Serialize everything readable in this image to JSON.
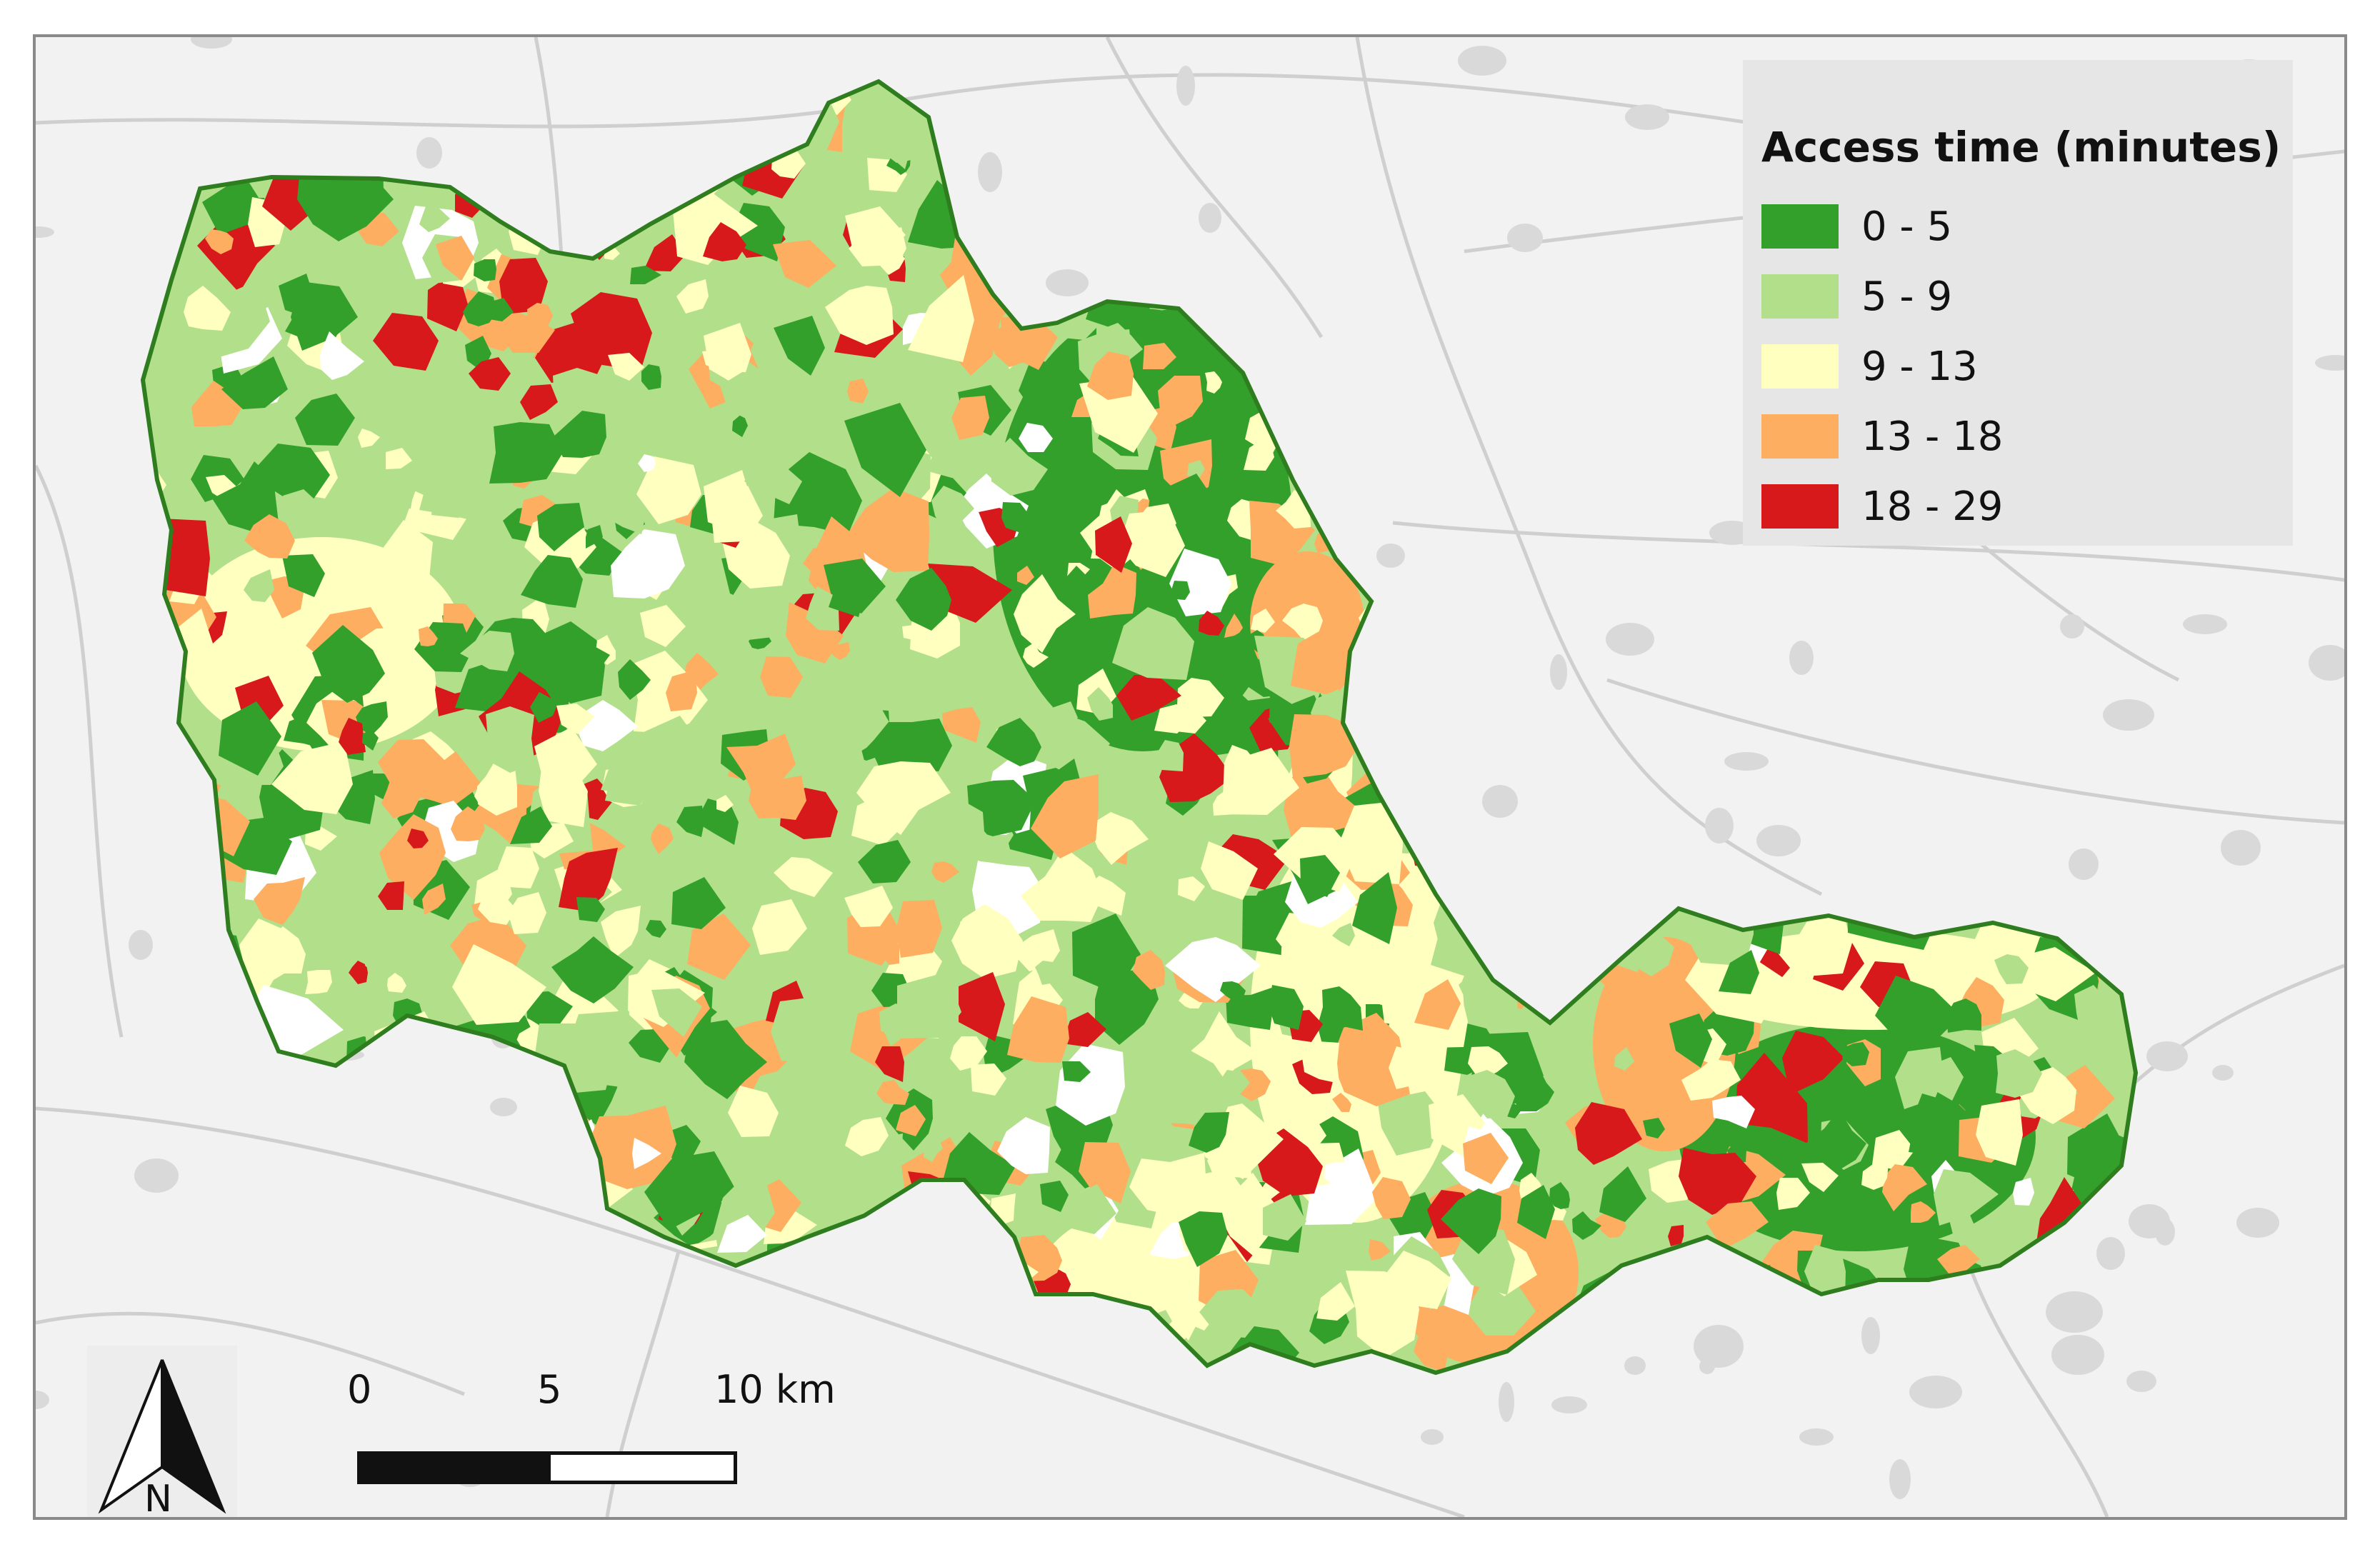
{
  "legend": {
    "title": "Access time (minutes)",
    "items": [
      {
        "label": "0 - 5",
        "color": "#33a02c"
      },
      {
        "label": "5 - 9",
        "color": "#b2df8a"
      },
      {
        "label": "9 - 13",
        "color": "#ffffbf"
      },
      {
        "label": "13 - 18",
        "color": "#fdae61"
      },
      {
        "label": "18 - 29",
        "color": "#d7191c"
      }
    ]
  },
  "north_arrow": {
    "label": "N"
  },
  "scale_bar": {
    "labels": [
      "0",
      "5",
      "10 km"
    ]
  },
  "colors": {
    "background": "#f2f2f2",
    "roads": "#c8c8c8",
    "boundary": "#2e7d1e",
    "unmatched": "#ffffff"
  }
}
